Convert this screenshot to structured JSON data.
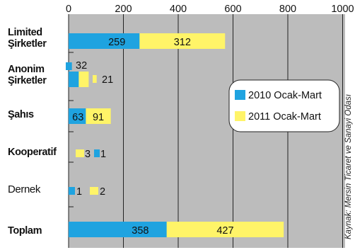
{
  "chart_data": {
    "type": "bar",
    "orientation": "horizontal",
    "stacked": true,
    "categories": [
      "Limited Şirketler",
      "Anonim Şirketler",
      "Şahıs",
      "Kooperatif",
      "Dernek",
      "Toplam"
    ],
    "category_lines": [
      [
        "Limited",
        "Şirketler"
      ],
      [
        "Anonim",
        "Şirketler"
      ],
      [
        "Şahıs"
      ],
      [
        "Kooperatif"
      ],
      [
        "Dernek"
      ],
      [
        "Toplam"
      ]
    ],
    "series": [
      {
        "name": "2010 Ocak-Mart",
        "values": [
          259,
          32,
          63,
          1,
          1,
          358
        ],
        "labels": [
          "259",
          "32",
          "63",
          "1",
          "1",
          "358"
        ]
      },
      {
        "name": "2011 Ocak-Mart",
        "values": [
          312,
          21,
          91,
          3,
          2,
          427
        ],
        "labels": [
          "312",
          "21",
          "91",
          "3",
          "2",
          "427"
        ]
      }
    ],
    "x_ticks": [
      "0",
      "200",
      "400",
      "600",
      "800",
      "1000"
    ],
    "xlim": [
      0,
      1000
    ],
    "grid": true,
    "legend_position": "right",
    "source_note": "Kaynak: Mersin Ticaret ve Sanayi Odası",
    "colors": {
      "series_2010": "#1fa3e0",
      "series_2011": "#fff468",
      "plot_bg": "#bcbcbc",
      "grid": "#222222",
      "text": "#111111"
    }
  }
}
